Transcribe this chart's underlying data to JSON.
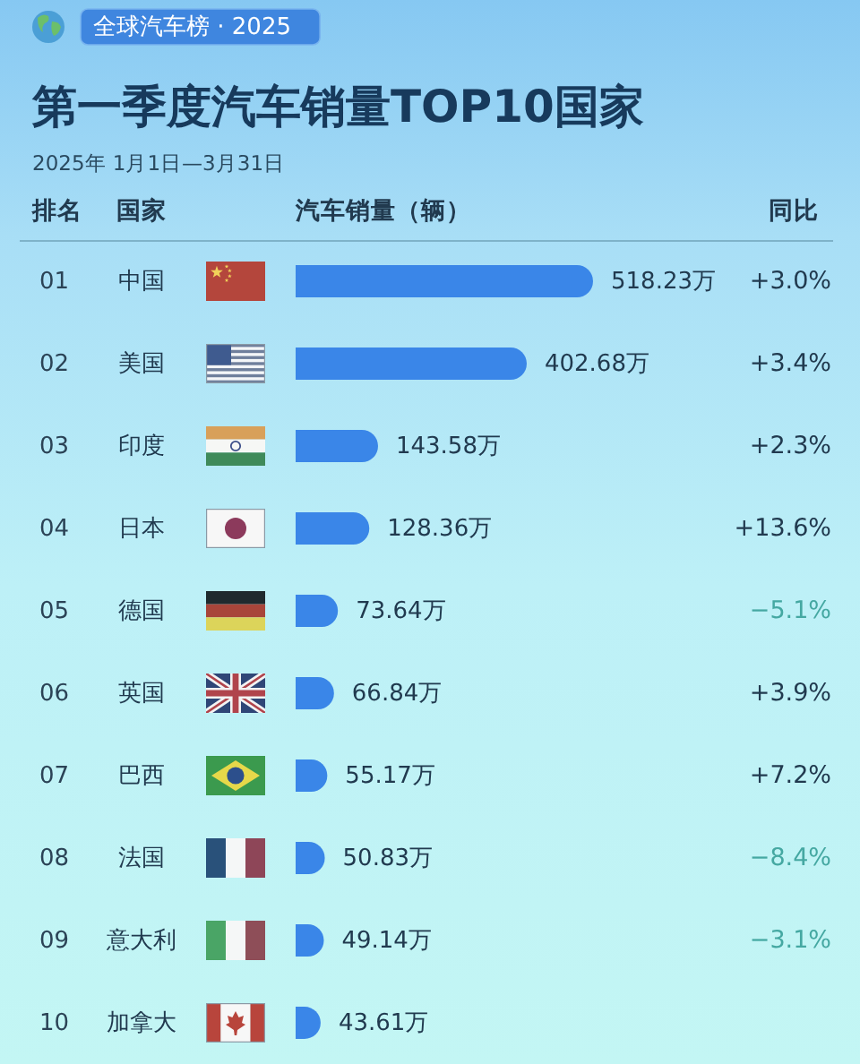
{
  "chart_data": {
    "type": "bar",
    "orientation": "horizontal",
    "title": "第一季度汽车销量TOP10国家",
    "subtitle": "2025年 1月1日—3月31日",
    "xlabel": "汽车销量（辆）",
    "ylabel": "国家",
    "categories": [
      "中国",
      "美国",
      "印度",
      "日本",
      "德国",
      "英国",
      "巴西",
      "法国",
      "意大利",
      "加拿大"
    ],
    "values": [
      518.23,
      402.68,
      143.58,
      128.36,
      73.64,
      66.84,
      55.17,
      50.83,
      49.14,
      43.61
    ],
    "color": "#3a86e8",
    "value_labels": [
      "518.23万",
      "402.68万",
      "143.58万",
      "128.36万",
      "73.64万",
      "66.84万",
      "55.17万",
      "50.83万",
      "49.14万",
      "43.61万"
    ],
    "annotations": [
      "全球汽车榜 · 2025",
      "排名",
      "同比",
      "01",
      "02",
      "03",
      "04",
      "05",
      "06",
      "07",
      "08",
      "09",
      "10",
      "+3.0%",
      "+3.4%",
      "+2.3%",
      "+13.6%",
      "−5.1%",
      "+3.9%",
      "+7.2%",
      "−8.4%",
      "−3.1%"
    ]
  }
}
